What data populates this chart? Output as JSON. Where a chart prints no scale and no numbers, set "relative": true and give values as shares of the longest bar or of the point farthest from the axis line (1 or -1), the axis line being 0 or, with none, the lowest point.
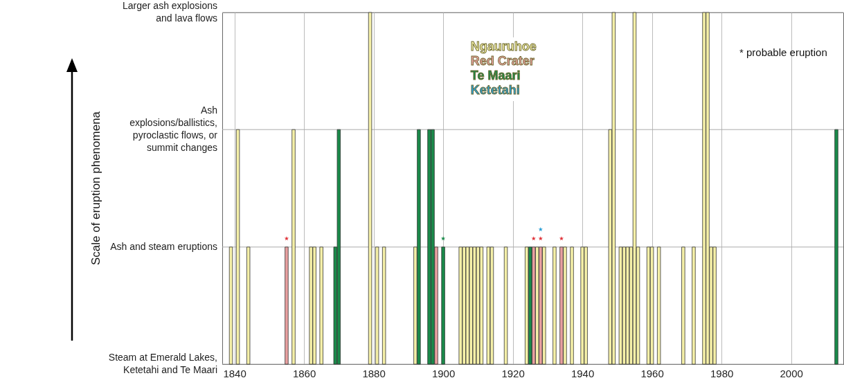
{
  "chart_data": {
    "type": "bar",
    "relative": true,
    "xlim": [
      1837.5,
      2014
    ],
    "xticks": [
      1840,
      1860,
      1880,
      1900,
      1920,
      1940,
      1960,
      1980,
      2000
    ],
    "grid": "x",
    "legend": "top",
    "marker": "star",
    "ref_lines": [
      {
        "axis": "y",
        "value": 0,
        "label": "Steam at Emerald Lakes, Ketetahi and Te Maari"
      },
      {
        "axis": "y",
        "value": 0.333,
        "label": "Ash and steam eruptions"
      },
      {
        "axis": "y",
        "value": 0.667,
        "label": "Ash explosions/ballistics, pyroclastic flows, or summit changes"
      },
      {
        "axis": "y",
        "value": 1,
        "label": "Larger ash explosions and lava flows"
      }
    ],
    "annotations": [
      "Scale of eruption phenomena",
      "* probable eruption"
    ],
    "series": [
      {
        "name": "Ngauruhoe",
        "color": "#f5f0a8",
        "x": [
          1839,
          1841,
          1844,
          1857,
          1862,
          1863,
          1865,
          1879,
          1881,
          1883,
          1892,
          1905,
          1906,
          1907,
          1908,
          1909,
          1910,
          1911,
          1913,
          1914,
          1918,
          1924,
          1927,
          1929,
          1932,
          1935,
          1937,
          1940,
          1941,
          1948,
          1949,
          1951,
          1952,
          1953,
          1954,
          1955,
          1956,
          1959,
          1960,
          1962,
          1969,
          1972,
          1975,
          1976,
          1977,
          1978
        ],
        "values": [
          0.333,
          0.667,
          0.333,
          0.667,
          0.333,
          0.333,
          0.333,
          1,
          0.333,
          0.333,
          0.333,
          0.333,
          0.333,
          0.333,
          0.333,
          0.333,
          0.333,
          0.333,
          0.333,
          0.333,
          0.333,
          0.333,
          0.333,
          0.333,
          0.333,
          0.333,
          0.333,
          0.333,
          0.333,
          0.667,
          1,
          0.333,
          0.333,
          0.333,
          0.333,
          1,
          0.333,
          0.333,
          0.333,
          0.333,
          0.333,
          0.333,
          1,
          1,
          0.333,
          0.333
        ]
      },
      {
        "name": "Red Crater",
        "color": "#e8a0a0",
        "x": [
          1855,
          1898,
          1926,
          1928,
          1934
        ],
        "values": [
          0.333,
          0.333,
          0.333,
          0.333,
          0.333
        ]
      },
      {
        "name": "Te Maari",
        "color": "#1a8a4a",
        "x": [
          1869,
          1870,
          1893,
          1896,
          1897,
          1900,
          1925,
          2013
        ],
        "values": [
          0.333,
          0.667,
          0.667,
          0.667,
          0.667,
          0.333,
          0.333,
          0.667
        ]
      },
      {
        "name": "Ketetahi",
        "type": "scatter",
        "color": "#2a9fd6",
        "x": [
          1928
        ],
        "values": [
          0.383
        ]
      },
      {
        "type": "scatter",
        "color": "#e0343a",
        "x": [
          1855,
          1926,
          1928,
          1934
        ],
        "values": [
          0.357,
          0.357,
          0.357,
          0.357
        ]
      },
      {
        "type": "scatter",
        "color": "#1a8a4a",
        "x": [
          1900
        ],
        "values": [
          0.357
        ]
      }
    ]
  }
}
